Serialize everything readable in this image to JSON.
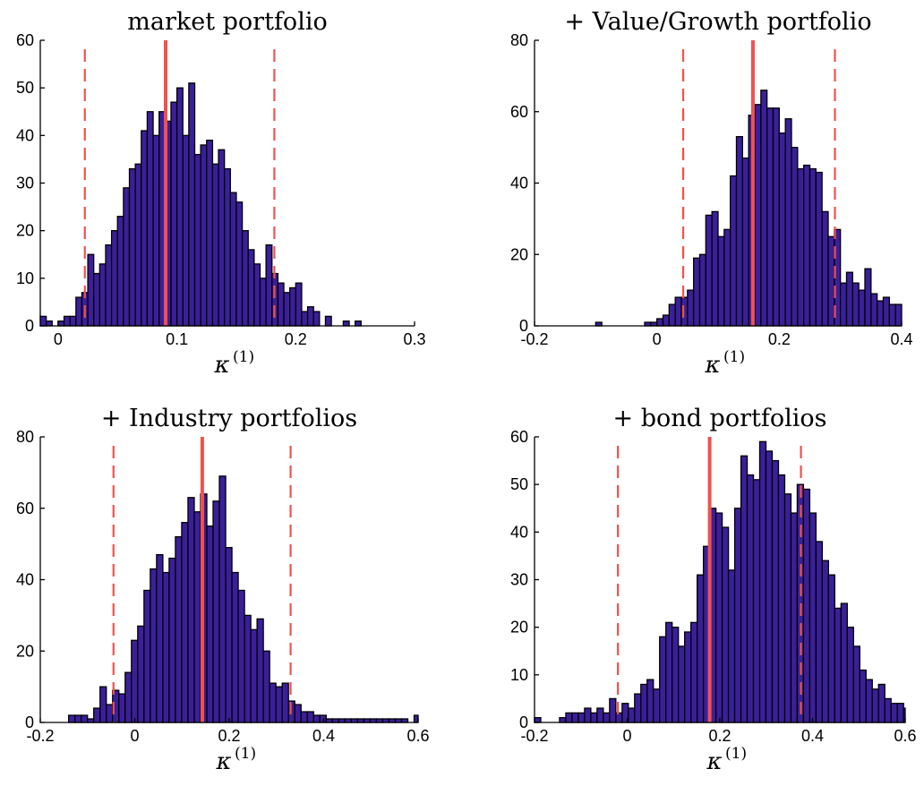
{
  "colors": {
    "bar_fill": "#3b1f9a",
    "bar_edge": "#000000",
    "ref_line": "#f0524f"
  },
  "chart_data": [
    {
      "type": "histogram",
      "title": "market portfolio",
      "xlabel": "κ",
      "xlabel_sup": "(1)",
      "xlim": [
        -0.015,
        0.3
      ],
      "ylim": [
        0,
        60
      ],
      "xticks": [
        0,
        0.1,
        0.2,
        0.3
      ],
      "xtick_labels": [
        "0",
        "0.1",
        "0.2",
        "0.3"
      ],
      "yticks": [
        0,
        10,
        20,
        30,
        40,
        50,
        60
      ],
      "ytick_labels": [
        "0",
        "10",
        "20",
        "30",
        "40",
        "50",
        "60"
      ],
      "bin_start": -0.015,
      "bin_width": 0.005,
      "counts": [
        2,
        1,
        0,
        1,
        2,
        2,
        6,
        7,
        15,
        11,
        13,
        17,
        20,
        23,
        29,
        33,
        34,
        41,
        45,
        40,
        45,
        43,
        47,
        50,
        40,
        51,
        36,
        38,
        39,
        34,
        37,
        33,
        28,
        26,
        20,
        16,
        13,
        10,
        17,
        11,
        9,
        7,
        8,
        9,
        3,
        4,
        3,
        0,
        2,
        0,
        0,
        1,
        0,
        1,
        0,
        0,
        0,
        0,
        0,
        0,
        0,
        0,
        0
      ],
      "solid_line": 0.0905,
      "dashed_lines": [
        0.0225,
        0.182
      ]
    },
    {
      "type": "histogram",
      "title": "+ Value/Growth portfolio",
      "xlabel": "κ",
      "xlabel_sup": "(1)",
      "xlim": [
        -0.2,
        0.4
      ],
      "ylim": [
        0,
        80
      ],
      "xticks": [
        -0.2,
        0,
        0.2,
        0.4
      ],
      "xtick_labels": [
        "-0.2",
        "0",
        "0.2",
        "0.4"
      ],
      "yticks": [
        0,
        20,
        40,
        60,
        80
      ],
      "ytick_labels": [
        "0",
        "20",
        "40",
        "60",
        "80"
      ],
      "bin_start": -0.1,
      "bin_width": 0.01,
      "counts": [
        1,
        0,
        0,
        0,
        0,
        0,
        0,
        0,
        1,
        1,
        2,
        3,
        6,
        8,
        8,
        10,
        19,
        20,
        31,
        32,
        25,
        27,
        42,
        53,
        47,
        59,
        62,
        66,
        61,
        61,
        54,
        58,
        50,
        44,
        45,
        44,
        43,
        32,
        25,
        27,
        12,
        15,
        12,
        10,
        16,
        9,
        7,
        8,
        6,
        6,
        0,
        2,
        2,
        1,
        1
      ],
      "solid_line": 0.157,
      "dashed_lines": [
        0.043,
        0.291
      ]
    },
    {
      "type": "histogram",
      "title": "+ Industry portfolios",
      "xlabel": "κ",
      "xlabel_sup": "(1)",
      "xlim": [
        -0.2,
        0.6
      ],
      "ylim": [
        0,
        80
      ],
      "xticks": [
        -0.2,
        0,
        0.2,
        0.4,
        0.6
      ],
      "xtick_labels": [
        "-0.2",
        "0",
        "0.2",
        "0.4",
        "0.6"
      ],
      "yticks": [
        0,
        20,
        40,
        60,
        80
      ],
      "ytick_labels": [
        "0",
        "20",
        "40",
        "60",
        "80"
      ],
      "bin_start": -0.14,
      "bin_width": 0.0133,
      "counts": [
        2,
        2,
        2,
        1,
        4,
        10,
        5,
        9,
        8,
        14,
        23,
        27,
        37,
        43,
        47,
        42,
        46,
        52,
        56,
        63,
        59,
        64,
        55,
        62,
        69,
        49,
        42,
        37,
        30,
        26,
        29,
        20,
        11,
        10,
        11,
        6,
        5,
        3,
        3,
        2,
        2,
        1,
        1,
        1,
        1,
        1,
        1,
        1,
        1,
        1,
        1,
        1,
        1,
        1,
        0,
        2
      ],
      "solid_line": 0.143,
      "dashed_lines": [
        -0.045,
        0.33
      ]
    },
    {
      "type": "histogram",
      "title": "+ bond portfolios",
      "xlabel": "κ",
      "xlabel_sup": "(1)",
      "xlim": [
        -0.2,
        0.6
      ],
      "ylim": [
        0,
        60
      ],
      "xticks": [
        -0.2,
        0,
        0.2,
        0.4,
        0.6
      ],
      "xtick_labels": [
        "-0.2",
        "0",
        "0.2",
        "0.4",
        "0.6"
      ],
      "yticks": [
        0,
        10,
        20,
        30,
        40,
        50,
        60
      ],
      "ytick_labels": [
        "0",
        "10",
        "20",
        "30",
        "40",
        "50",
        "60"
      ],
      "bin_start": -0.2,
      "bin_width": 0.0135,
      "counts": [
        1,
        0,
        0,
        0,
        1,
        2,
        2,
        2,
        3,
        2,
        3,
        2,
        5,
        2,
        4,
        3,
        6,
        8,
        9,
        7,
        18,
        21,
        20,
        16,
        19,
        21,
        31,
        37,
        45,
        44,
        41,
        32,
        45,
        56,
        52,
        51,
        59,
        57,
        55,
        52,
        48,
        44,
        50,
        49,
        44,
        38,
        34,
        31,
        24,
        25,
        20,
        16,
        11,
        9,
        7,
        8,
        5,
        4,
        4,
        3,
        2,
        2,
        1
      ],
      "solid_line": 0.178,
      "dashed_lines": [
        -0.02,
        0.375
      ]
    }
  ]
}
